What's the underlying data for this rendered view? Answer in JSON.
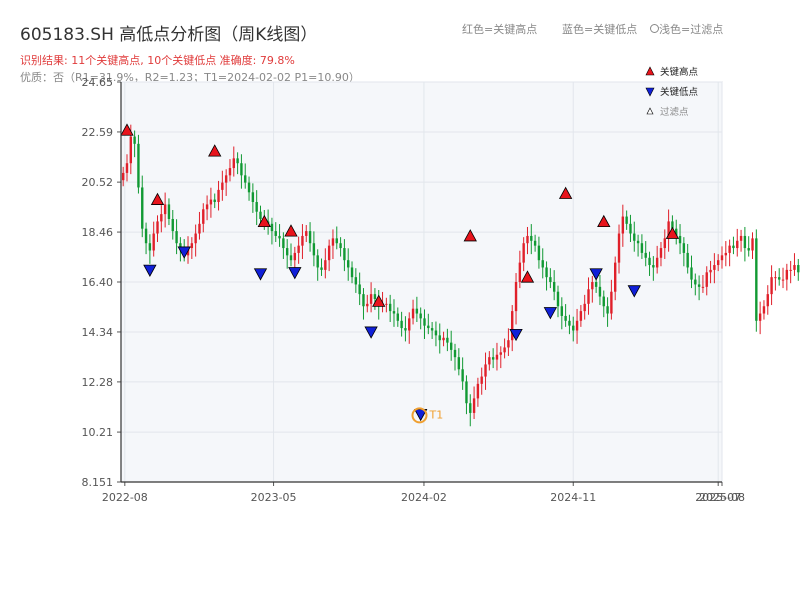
{
  "header": {
    "title": "605183.SH 高低点分析图（周K线图）",
    "result_text": "识别结果: 11个关键高点, 10个关键低点  准确度: 79.8%",
    "quality_text": "优质：否（R1=31.9%，R2=1.23；T1=2024-02-02 P1=10.90）",
    "legend_top": {
      "red_label": "红色=关键高点",
      "blue_label": "蓝色=关键低点",
      "filtered_label": "浅色=过滤点"
    }
  },
  "colors": {
    "up": "#e0202a",
    "down": "#119933",
    "high_marker": "#e8141c",
    "low_marker": "#1020d8",
    "t1_ring": "#f0a030",
    "grid": "#e2e6ec",
    "plot_bg": "#f5f7fa"
  },
  "chart_data": {
    "type": "candlestick",
    "x_tick_labels": [
      "2022-08",
      "2023-05",
      "2024-02",
      "2024-11",
      "2025-07",
      "2025-08"
    ],
    "y_tick_labels": [
      "8.151",
      "10.21",
      "12.28",
      "14.34",
      "16.40",
      "18.46",
      "20.52",
      "22.59",
      "24.65"
    ],
    "ylim": [
      8.151,
      24.65
    ],
    "xlim": [
      "2022-07-25",
      "2025-08-01"
    ],
    "legend": {
      "placement": "top-right",
      "items": [
        {
          "label": "关键高点",
          "kind": "high"
        },
        {
          "label": "关键低点",
          "kind": "low"
        },
        {
          "label": "过滤点",
          "kind": "filtered"
        }
      ]
    },
    "closes": [
      20.9,
      21.3,
      22.4,
      22.1,
      20.3,
      18.6,
      18.0,
      17.7,
      18.4,
      18.9,
      19.2,
      19.6,
      19.0,
      18.5,
      18.0,
      17.8,
      17.5,
      17.8,
      18.0,
      18.4,
      18.8,
      19.4,
      19.6,
      19.8,
      19.7,
      20.2,
      20.5,
      20.8,
      21.1,
      21.5,
      21.3,
      20.8,
      20.5,
      20.1,
      19.7,
      19.3,
      19.0,
      18.9,
      18.8,
      18.5,
      18.3,
      18.2,
      17.8,
      17.5,
      17.3,
      17.6,
      17.9,
      18.3,
      18.5,
      18.0,
      17.5,
      17.0,
      16.9,
      17.3,
      17.9,
      18.2,
      18.0,
      17.8,
      17.3,
      17.0,
      16.6,
      16.3,
      15.9,
      15.4,
      15.5,
      15.9,
      15.7,
      15.4,
      15.5,
      15.5,
      15.2,
      15.1,
      14.8,
      14.5,
      14.4,
      14.9,
      15.3,
      15.1,
      14.9,
      14.6,
      14.5,
      14.4,
      14.2,
      14.0,
      14.1,
      13.9,
      13.6,
      13.3,
      12.8,
      12.3,
      11.4,
      11.0,
      11.6,
      12.2,
      12.5,
      13.0,
      13.3,
      13.2,
      13.4,
      13.5,
      13.7,
      14.0,
      15.2,
      16.4,
      17.2,
      18.0,
      18.3,
      18.1,
      17.9,
      17.3,
      17.0,
      16.6,
      16.4,
      16.0,
      15.4,
      15.0,
      14.8,
      14.6,
      14.4,
      14.8,
      15.2,
      15.5,
      16.1,
      16.4,
      16.2,
      15.8,
      15.4,
      15.1,
      16.0,
      17.2,
      18.4,
      19.1,
      18.8,
      18.4,
      18.1,
      18.0,
      17.6,
      17.4,
      17.1,
      17.0,
      17.4,
      17.8,
      18.2,
      18.9,
      18.6,
      18.3,
      18.0,
      17.6,
      17.0,
      16.5,
      16.3,
      16.2,
      16.2,
      16.8,
      16.9,
      17.1,
      17.3,
      17.5,
      17.6,
      17.9,
      17.8,
      18.1,
      18.3,
      17.8,
      17.7,
      18.2,
      14.8,
      15.1,
      15.4,
      15.9,
      16.6,
      16.6,
      16.5,
      16.5,
      16.9,
      16.9,
      17.1,
      16.8,
      17.0,
      17.2,
      17.5,
      17.6,
      17.8,
      18.3,
      18.4,
      18.7,
      19.3,
      20.1,
      20.8,
      21.3
    ],
    "key_highs": [
      {
        "date": "2022-08-05",
        "price": 22.66
      },
      {
        "date": "2022-09-30",
        "price": 19.8
      },
      {
        "date": "2023-01-13",
        "price": 21.8
      },
      {
        "date": "2023-04-14",
        "price": 18.89
      },
      {
        "date": "2023-06-02",
        "price": 18.5
      },
      {
        "date": "2023-11-10",
        "price": 15.6
      },
      {
        "date": "2024-04-26",
        "price": 18.3
      },
      {
        "date": "2024-08-09",
        "price": 16.6
      },
      {
        "date": "2024-10-18",
        "price": 20.05
      },
      {
        "date": "2024-12-27",
        "price": 18.89
      },
      {
        "date": "2025-05-02",
        "price": 18.4
      }
    ],
    "key_lows": [
      {
        "date": "2022-09-16",
        "price": 16.85
      },
      {
        "date": "2022-11-18",
        "price": 17.6
      },
      {
        "date": "2023-04-07",
        "price": 16.7
      },
      {
        "date": "2023-06-09",
        "price": 16.75
      },
      {
        "date": "2023-10-27",
        "price": 14.3
      },
      {
        "date": "2024-01-26",
        "price": 10.9
      },
      {
        "date": "2024-07-19",
        "price": 14.2
      },
      {
        "date": "2024-09-20",
        "price": 15.1
      },
      {
        "date": "2024-12-13",
        "price": 16.7
      },
      {
        "date": "2025-02-21",
        "price": 16.0
      }
    ],
    "t1": {
      "label": "T1",
      "date": "2024-02-02",
      "price": 10.9
    }
  }
}
